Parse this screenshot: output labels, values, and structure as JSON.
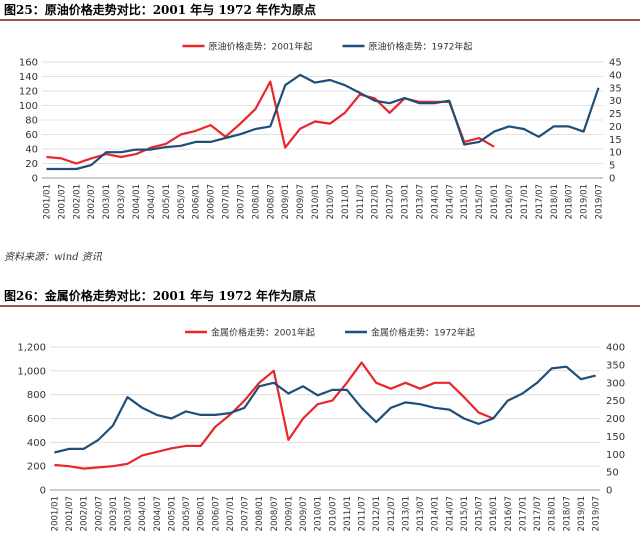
{
  "chart_data": [
    {
      "type": "line",
      "title": "图25：原油价格走势对比：2001 年与 1972 年作为原点",
      "source": "资料来源：wind 资讯",
      "categories": [
        "2001/01",
        "2001/07",
        "2002/01",
        "2002/07",
        "2003/01",
        "2003/07",
        "2004/01",
        "2004/07",
        "2005/01",
        "2005/07",
        "2006/01",
        "2006/07",
        "2007/01",
        "2007/07",
        "2008/01",
        "2008/07",
        "2009/01",
        "2009/07",
        "2010/01",
        "2010/07",
        "2011/01",
        "2011/07",
        "2012/01",
        "2012/07",
        "2013/01",
        "2013/07",
        "2014/01",
        "2014/07",
        "2015/01",
        "2015/07",
        "2016/01",
        "2016/07",
        "2017/01",
        "2017/07",
        "2018/01",
        "2018/07",
        "2019/01",
        "2019/07"
      ],
      "series": [
        {
          "name": "原油价格走势：2001年起",
          "color": "#e8262c",
          "axis": "y",
          "values": [
            29,
            27,
            20,
            27,
            33,
            29,
            33,
            42,
            47,
            60,
            65,
            73,
            57,
            75,
            95,
            133,
            42,
            68,
            78,
            75,
            90,
            115,
            110,
            90,
            110,
            105,
            105,
            105,
            50,
            55,
            43,
            null,
            null,
            null,
            null,
            null,
            null,
            null
          ]
        },
        {
          "name": "原油价格走势：1972年起",
          "color": "#1f4e79",
          "axis": "y2",
          "values": [
            3.5,
            3.5,
            3.5,
            5,
            10,
            10,
            11,
            11,
            12,
            12.5,
            14,
            14,
            15.5,
            17,
            19,
            20,
            36,
            40,
            37,
            38,
            36,
            33,
            30,
            29,
            31,
            29,
            29,
            30,
            13,
            14,
            18,
            20,
            19,
            16,
            20,
            20,
            18,
            35
          ]
        }
      ],
      "ylim": [
        0,
        160
      ],
      "yticks": [
        0,
        20,
        40,
        60,
        80,
        100,
        120,
        140,
        160
      ],
      "y2lim": [
        0,
        45
      ],
      "y2ticks": [
        0,
        5,
        10,
        15,
        20,
        25,
        30,
        35,
        40,
        45
      ],
      "grid": true,
      "legend": "top"
    },
    {
      "type": "line",
      "title": "图26：金属价格走势对比：2001 年与 1972 年作为原点",
      "source": "资料来源：wind 资讯",
      "categories": [
        "2001/01",
        "2001/07",
        "2002/01",
        "2002/07",
        "2003/01",
        "2003/07",
        "2004/01",
        "2004/07",
        "2005/01",
        "2005/07",
        "2006/01",
        "2006/07",
        "2007/01",
        "2007/07",
        "2008/01",
        "2008/07",
        "2009/01",
        "2009/07",
        "2010/01",
        "2010/07",
        "2011/01",
        "2011/07",
        "2012/01",
        "2012/07",
        "2013/01",
        "2013/07",
        "2014/01",
        "2014/07",
        "2015/01",
        "2015/07",
        "2016/01",
        "2016/07",
        "2017/01",
        "2017/07",
        "2018/01",
        "2018/07",
        "2019/01",
        "2019/07"
      ],
      "series": [
        {
          "name": "金属价格走势：2001年起",
          "color": "#e8262c",
          "axis": "y",
          "values": [
            210,
            200,
            180,
            190,
            200,
            220,
            290,
            320,
            350,
            370,
            370,
            530,
            630,
            750,
            900,
            1000,
            420,
            600,
            720,
            750,
            900,
            1070,
            900,
            850,
            900,
            850,
            900,
            900,
            780,
            650,
            600,
            null,
            null,
            null,
            null,
            null,
            null,
            null
          ]
        },
        {
          "name": "金属价格走势：1972年起",
          "color": "#1f4e79",
          "axis": "y2",
          "values": [
            105,
            115,
            115,
            140,
            180,
            260,
            230,
            210,
            200,
            220,
            210,
            210,
            215,
            230,
            290,
            300,
            270,
            290,
            265,
            280,
            280,
            230,
            190,
            230,
            245,
            240,
            230,
            225,
            200,
            185,
            200,
            250,
            270,
            300,
            340,
            345,
            310,
            320
          ]
        }
      ],
      "ylim": [
        0,
        1200
      ],
      "yticks": [
        0,
        200,
        400,
        600,
        800,
        {
          "value": 1000,
          "label": "1,000"
        },
        {
          "value": 1200,
          "label": "1,200"
        }
      ],
      "y2lim": [
        0,
        400
      ],
      "y2ticks": [
        0,
        50,
        100,
        150,
        200,
        250,
        300,
        350,
        400
      ],
      "grid": true,
      "legend": "top"
    }
  ]
}
